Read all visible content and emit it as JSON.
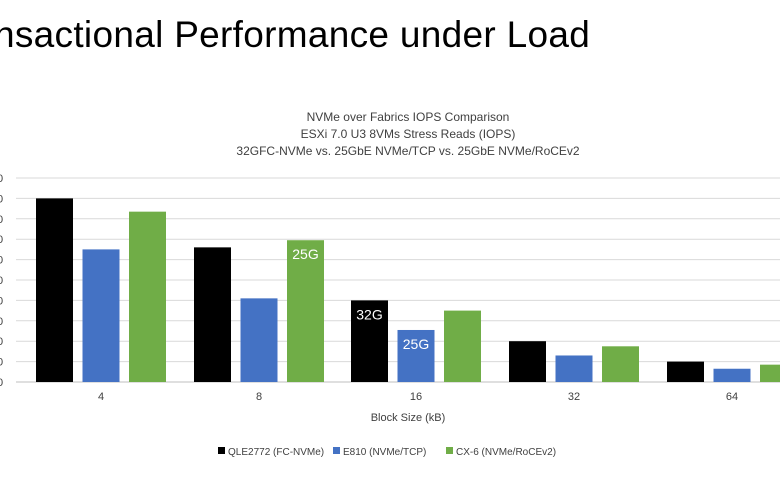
{
  "slide": {
    "title": "nsactional Performance under Load"
  },
  "chart_data": {
    "type": "bar",
    "title_lines": [
      "NVMe over Fabrics IOPS Comparison",
      "ESXi 7.0 U3 8VMs Stress Reads (IOPS)",
      "32GFC-NVMe vs. 25GbE NVMe/TCP vs. 25GbE NVMe/RoCEv2"
    ],
    "xlabel": "Block Size (kB)",
    "ylabel": "",
    "categories": [
      "4",
      "8",
      "16",
      "32",
      "64"
    ],
    "ylim": [
      0,
      1000
    ],
    "grid": true,
    "legend_position": "bottom",
    "series": [
      {
        "name": "QLE2772 (FC-NVMe)",
        "color": "#000000",
        "values": [
          900,
          660,
          400,
          200,
          100
        ]
      },
      {
        "name": "E810 (NVMe/TCP)",
        "color": "#4472C4",
        "values": [
          650,
          410,
          255,
          130,
          65
        ]
      },
      {
        "name": "CX-6 (NVMe/RoCEv2)",
        "color": "#70AD47",
        "values": [
          835,
          695,
          350,
          175,
          85
        ]
      }
    ],
    "annotations": [
      {
        "text": "25G",
        "series": 2,
        "category": 1
      },
      {
        "text": "32G",
        "series": 0,
        "category": 2
      },
      {
        "text": "25G",
        "series": 1,
        "category": 2
      }
    ]
  }
}
